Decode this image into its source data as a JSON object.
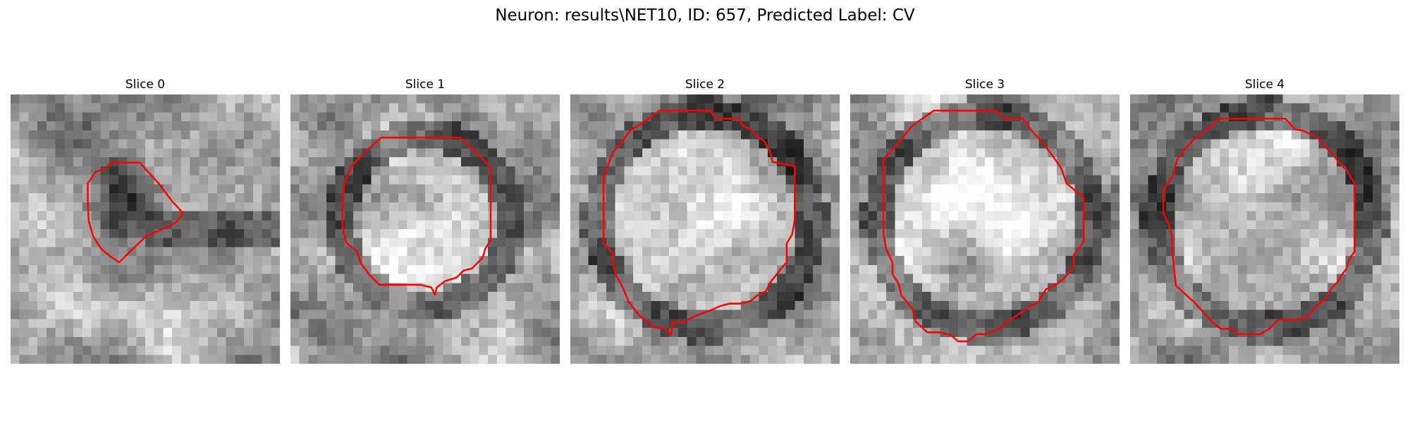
{
  "figure": {
    "suptitle": "Neuron: results\\NET10, ID: 657, Predicted Label: CV",
    "contour_color": "#ff0000",
    "colormap": "gray",
    "panels": [
      {
        "title": "Slice 0",
        "seed": 11,
        "dark_blob": true,
        "ring": "none"
      },
      {
        "title": "Slice 1",
        "seed": 23,
        "dark_blob": false,
        "ring": "bright-center"
      },
      {
        "title": "Slice 2",
        "seed": 37,
        "dark_blob": false,
        "ring": "large"
      },
      {
        "title": "Slice 3",
        "seed": 41,
        "dark_blob": false,
        "ring": "large"
      },
      {
        "title": "Slice 4",
        "seed": 53,
        "dark_blob": false,
        "ring": "large"
      }
    ]
  }
}
